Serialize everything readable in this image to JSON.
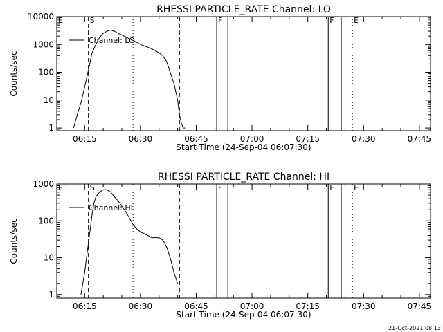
{
  "timestamp": "21-Oct-2021 08:13",
  "chart_data": [
    {
      "type": "line",
      "title": "RHESSI PARTICLE_RATE Channel: LO",
      "xlabel": "Start Time (24-Sep-04 06:07:30)",
      "ylabel": "Counts/sec",
      "yscale": "log",
      "xlim": [
        "06:07:30",
        "07:48:00"
      ],
      "ylim": [
        0.8,
        10000
      ],
      "x_ticks": [
        "06:15",
        "06:30",
        "06:45",
        "07:00",
        "07:15",
        "07:30",
        "07:45"
      ],
      "y_ticks": [
        {
          "value": 1,
          "label": "1"
        },
        {
          "value": 10,
          "label": "10"
        },
        {
          "value": 100,
          "label": "100"
        },
        {
          "value": 1000,
          "label": "1000"
        },
        {
          "value": 10000,
          "label": "10000"
        }
      ],
      "legend": {
        "placement": "top-left",
        "entries": [
          "Channel: LO"
        ]
      },
      "markers": [
        {
          "label": "E",
          "time": "06:07:30",
          "style": "none"
        },
        {
          "label": "S",
          "time": "06:16:00",
          "style": "dashed"
        },
        {
          "label": "",
          "time": "06:28:00",
          "style": "dotted"
        },
        {
          "label": "",
          "time": "06:40:30",
          "style": "dashed"
        },
        {
          "label": "F",
          "time": "06:50:30",
          "style": "solid"
        },
        {
          "label": "",
          "time": "06:53:30",
          "style": "solid"
        },
        {
          "label": "F",
          "time": "07:20:30",
          "style": "solid"
        },
        {
          "label": "",
          "time": "07:24:00",
          "style": "solid"
        },
        {
          "label": "E",
          "time": "07:27:00",
          "style": "dotted"
        },
        {
          "label": "",
          "time": "07:48:00",
          "style": "dotted"
        }
      ],
      "series": [
        {
          "name": "Channel: LO",
          "x": [
            "06:12:00",
            "06:13:00",
            "06:14:00",
            "06:14:30",
            "06:15:00",
            "06:15:30",
            "06:16:00",
            "06:16:30",
            "06:17:00",
            "06:18:00",
            "06:19:00",
            "06:20:00",
            "06:21:00",
            "06:22:00",
            "06:23:00",
            "06:24:00",
            "06:25:00",
            "06:26:00",
            "06:27:00",
            "06:28:00",
            "06:29:00",
            "06:30:00",
            "06:31:00",
            "06:32:00",
            "06:33:00",
            "06:34:00",
            "06:35:00",
            "06:36:00",
            "06:37:00",
            "06:38:00",
            "06:39:00",
            "06:40:00",
            "06:40:30",
            "06:41:00",
            "06:41:30",
            "06:42:00"
          ],
          "y": [
            1,
            3,
            8,
            15,
            30,
            60,
            120,
            250,
            500,
            1000,
            1800,
            2500,
            3000,
            3300,
            3000,
            2500,
            2200,
            1900,
            1600,
            1400,
            1200,
            1000,
            900,
            800,
            700,
            600,
            500,
            400,
            250,
            100,
            40,
            10,
            3,
            1.5,
            1,
            1
          ]
        }
      ]
    },
    {
      "type": "line",
      "title": "RHESSI PARTICLE_RATE Channel: HI",
      "xlabel": "Start Time (24-Sep-04 06:07:30)",
      "ylabel": "Counts/sec",
      "yscale": "log",
      "xlim": [
        "06:07:30",
        "07:48:00"
      ],
      "ylim": [
        0.8,
        1000
      ],
      "x_ticks": [
        "06:15",
        "06:30",
        "06:45",
        "07:00",
        "07:15",
        "07:30",
        "07:45"
      ],
      "y_ticks": [
        {
          "value": 1,
          "label": "1"
        },
        {
          "value": 10,
          "label": "10"
        },
        {
          "value": 100,
          "label": "100"
        },
        {
          "value": 1000,
          "label": "1000"
        }
      ],
      "legend": {
        "placement": "top-left",
        "entries": [
          "Channel: HI"
        ]
      },
      "markers": [
        {
          "label": "E",
          "time": "06:07:30",
          "style": "none"
        },
        {
          "label": "S",
          "time": "06:16:00",
          "style": "dashed"
        },
        {
          "label": "",
          "time": "06:28:00",
          "style": "dotted"
        },
        {
          "label": "",
          "time": "06:40:30",
          "style": "dashed"
        },
        {
          "label": "F",
          "time": "06:50:30",
          "style": "solid"
        },
        {
          "label": "",
          "time": "06:53:30",
          "style": "solid"
        },
        {
          "label": "F",
          "time": "07:20:30",
          "style": "solid"
        },
        {
          "label": "",
          "time": "07:24:00",
          "style": "solid"
        },
        {
          "label": "E",
          "time": "07:27:00",
          "style": "dotted"
        },
        {
          "label": "",
          "time": "07:48:00",
          "style": "dotted"
        }
      ],
      "series": [
        {
          "name": "Channel: HI",
          "x": [
            "06:14:00",
            "06:14:30",
            "06:15:00",
            "06:15:30",
            "06:16:00",
            "06:16:30",
            "06:17:00",
            "06:17:30",
            "06:18:00",
            "06:19:00",
            "06:20:00",
            "06:21:00",
            "06:22:00",
            "06:23:00",
            "06:24:00",
            "06:25:00",
            "06:26:00",
            "06:27:00",
            "06:28:00",
            "06:29:00",
            "06:30:00",
            "06:31:00",
            "06:32:00",
            "06:33:00",
            "06:34:00",
            "06:35:00",
            "06:36:00",
            "06:37:00",
            "06:38:00",
            "06:39:00",
            "06:40:00"
          ],
          "y": [
            1,
            2,
            4,
            10,
            25,
            60,
            150,
            300,
            450,
            600,
            700,
            700,
            600,
            450,
            350,
            250,
            180,
            120,
            80,
            60,
            50,
            45,
            40,
            35,
            35,
            35,
            30,
            20,
            10,
            4,
            2
          ]
        }
      ]
    }
  ]
}
